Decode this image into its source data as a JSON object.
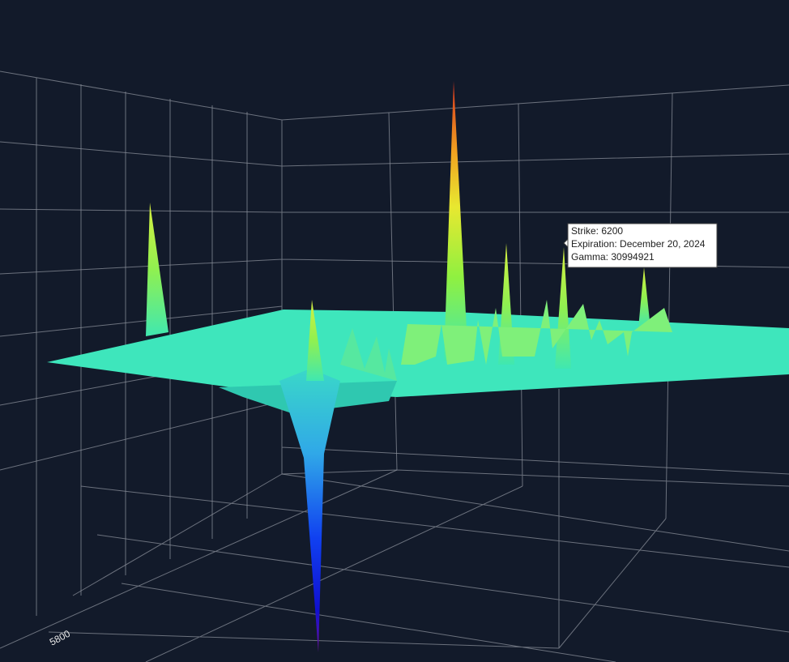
{
  "tooltip": {
    "lines": [
      "Strike: 6200",
      "Expiration: December 20, 2024",
      "Gamma: 30994921"
    ]
  },
  "axis": {
    "tick_labels": [
      "5800"
    ]
  }
}
